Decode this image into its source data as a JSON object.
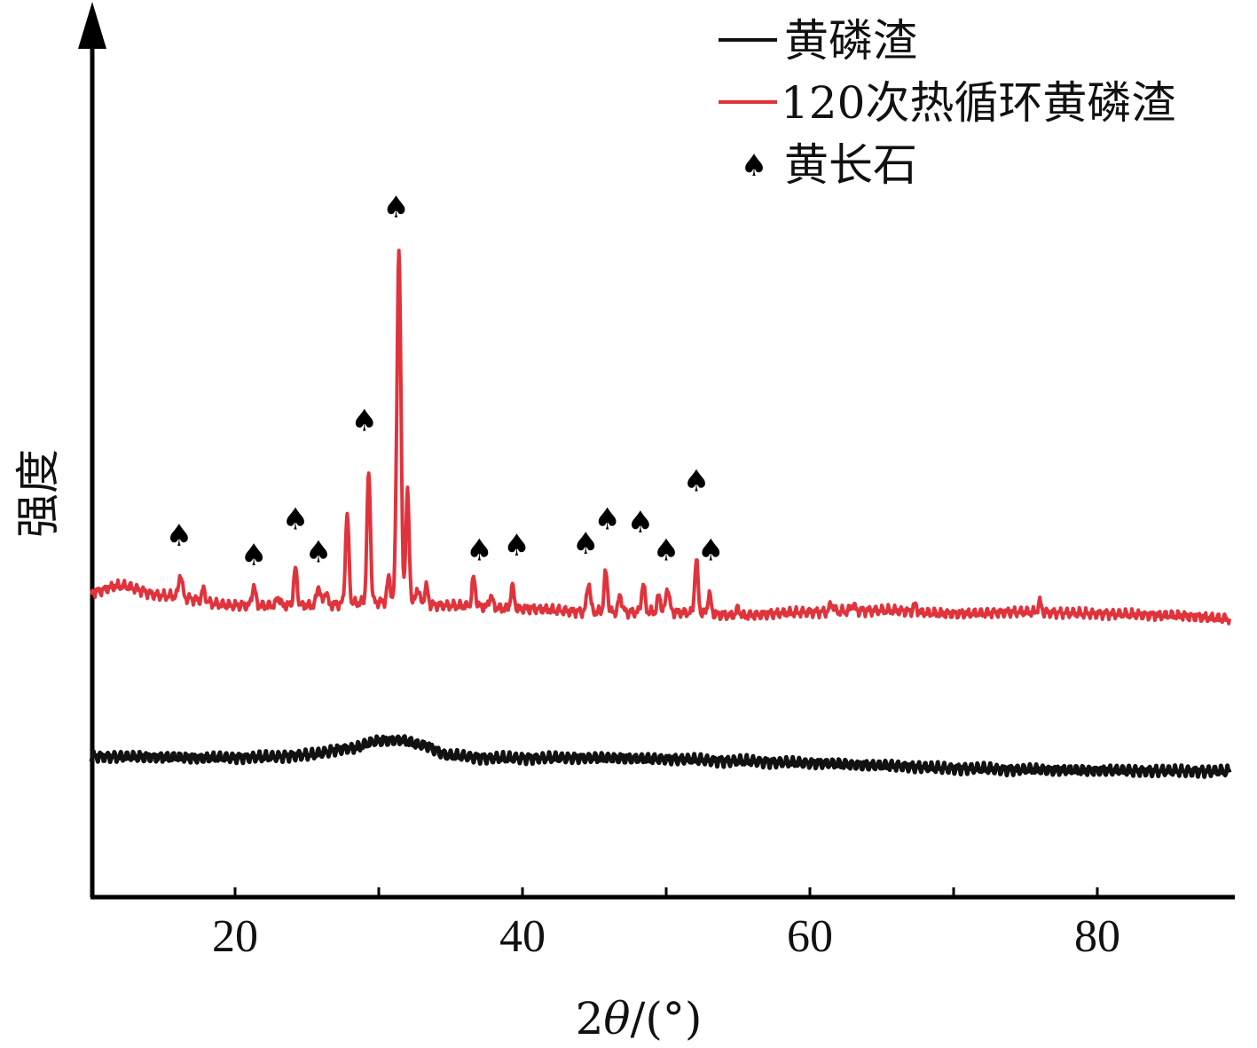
{
  "chart_data": {
    "type": "line",
    "title": "",
    "xlabel_prefix": "2",
    "xlabel_theta": "θ",
    "xlabel_suffix": "/(°)",
    "ylabel": "强度",
    "xlim": [
      10,
      90
    ],
    "x_ticks": [
      20,
      40,
      60,
      80
    ],
    "x_minor_ticks": [
      30,
      50,
      70
    ],
    "grid": false,
    "legend_position": "top-right",
    "colors": {
      "raw": "#111111",
      "cycled": "#e0333c",
      "axis": "#000000"
    },
    "series": [
      {
        "name": "黄磷渣",
        "color": "#111111",
        "baseline": [
          [
            10,
            1.0
          ],
          [
            14,
            0.97
          ],
          [
            18,
            0.92
          ],
          [
            22,
            0.96
          ],
          [
            25,
            1.1
          ],
          [
            28,
            1.5
          ],
          [
            30,
            1.95
          ],
          [
            31.5,
            2.0
          ],
          [
            33,
            1.7
          ],
          [
            35,
            1.05
          ],
          [
            38,
            0.9
          ],
          [
            45,
            0.92
          ],
          [
            50,
            0.85
          ],
          [
            55,
            0.72
          ],
          [
            60,
            0.6
          ],
          [
            65,
            0.45
          ],
          [
            70,
            0.28
          ],
          [
            75,
            0.2
          ],
          [
            80,
            0.15
          ],
          [
            85,
            0.12
          ],
          [
            89,
            0.1
          ]
        ],
        "peaks": []
      },
      {
        "name": "120次热循环黄磷渣",
        "color": "#e0333c",
        "baseline": [
          [
            10,
            11.0
          ],
          [
            12,
            11.4
          ],
          [
            15,
            10.8
          ],
          [
            20,
            10.2
          ],
          [
            25,
            10.2
          ],
          [
            30,
            10.4
          ],
          [
            35,
            10.2
          ],
          [
            40,
            10.0
          ],
          [
            45,
            9.8
          ],
          [
            50,
            9.8
          ],
          [
            55,
            9.6
          ],
          [
            60,
            9.8
          ],
          [
            65,
            9.9
          ],
          [
            70,
            9.7
          ],
          [
            75,
            9.8
          ],
          [
            80,
            9.7
          ],
          [
            85,
            9.6
          ],
          [
            89,
            9.4
          ]
        ],
        "peaks": [
          [
            16.2,
            1.4
          ],
          [
            17.8,
            0.7
          ],
          [
            21.3,
            1.2
          ],
          [
            23.0,
            0.5
          ],
          [
            24.2,
            2.2
          ],
          [
            25.8,
            1.2
          ],
          [
            26.3,
            0.8
          ],
          [
            27.8,
            5.4
          ],
          [
            29.3,
            7.9
          ],
          [
            30.7,
            1.5
          ],
          [
            31.4,
            21.5
          ],
          [
            32.0,
            6.7
          ],
          [
            32.7,
            1.0
          ],
          [
            33.3,
            1.1
          ],
          [
            36.6,
            1.7
          ],
          [
            37.8,
            0.7
          ],
          [
            39.3,
            1.3
          ],
          [
            44.6,
            1.8
          ],
          [
            45.8,
            2.4
          ],
          [
            46.8,
            1.0
          ],
          [
            48.4,
            1.7
          ],
          [
            49.5,
            1.0
          ],
          [
            50.1,
            1.5
          ],
          [
            52.1,
            3.2
          ],
          [
            53.0,
            1.2
          ],
          [
            55.0,
            0.4
          ],
          [
            61.5,
            0.5
          ],
          [
            63.0,
            0.4
          ],
          [
            67.3,
            0.4
          ],
          [
            76.0,
            0.6
          ]
        ]
      }
    ],
    "annotations": {
      "symbol": "♠",
      "label": "黄长石",
      "points": [
        [
          16.1,
          14.5
        ],
        [
          21.3,
          13.3
        ],
        [
          24.2,
          15.5
        ],
        [
          25.8,
          13.5
        ],
        [
          29.0,
          21.5
        ],
        [
          31.2,
          34.5
        ],
        [
          37.0,
          13.6
        ],
        [
          39.6,
          13.9
        ],
        [
          44.4,
          14.0
        ],
        [
          45.9,
          15.5
        ],
        [
          48.2,
          15.3
        ],
        [
          50.0,
          13.6
        ],
        [
          52.1,
          17.8
        ],
        [
          53.1,
          13.6
        ]
      ]
    }
  }
}
